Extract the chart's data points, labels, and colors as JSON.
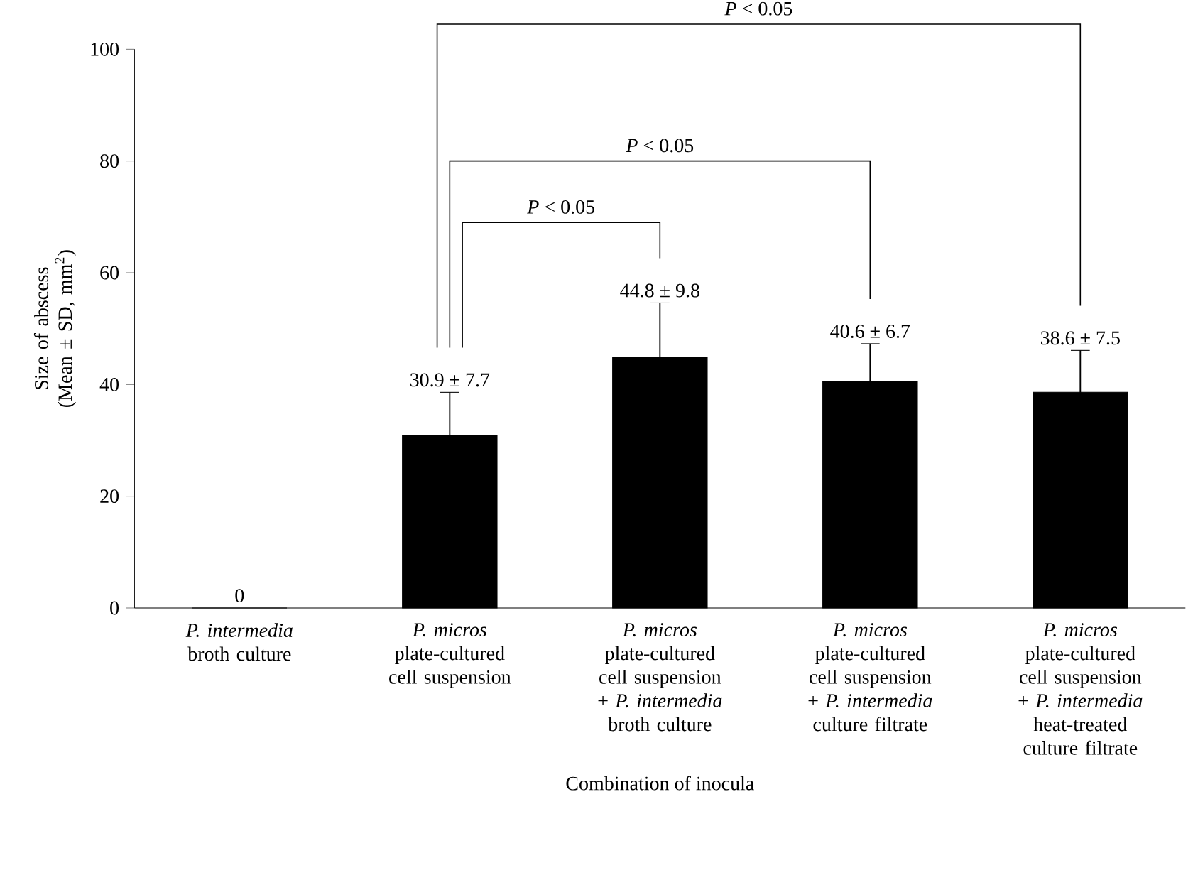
{
  "chart_data": {
    "type": "bar",
    "xlabel": "Combination of inocula",
    "ylabel": "Size of abscess (Mean ± SD, mm$^{2}$)",
    "categories": [
      "*P. intermedia* broth culture",
      "*P. micros* plate-cultured cell suspension",
      "*P. micros* plate-cultured cell suspension + *P. intermedia* broth culture",
      "*P. micros* plate-cultured cell suspension + *P. intermedia* culture filtrate",
      "*P. micros* plate-cultured cell suspension + *P. intermedia* heat-treated culture filtrate"
    ],
    "values": [
      0,
      30.9,
      44.8,
      40.6,
      38.6
    ],
    "errors": [
      null,
      7.7,
      9.8,
      6.7,
      7.5
    ],
    "value_labels": [
      "0",
      "30.9 ± 7.7",
      "44.8 ± 9.8",
      "40.6 ± 6.7",
      "38.6 ± 7.5"
    ],
    "color": "#000000",
    "ylim": [
      0,
      100
    ],
    "yticks": [
      0,
      20,
      40,
      60,
      80,
      100
    ],
    "annotations": [
      "*P* < 0.05",
      "*P* < 0.05",
      "*P* < 0.05"
    ]
  }
}
